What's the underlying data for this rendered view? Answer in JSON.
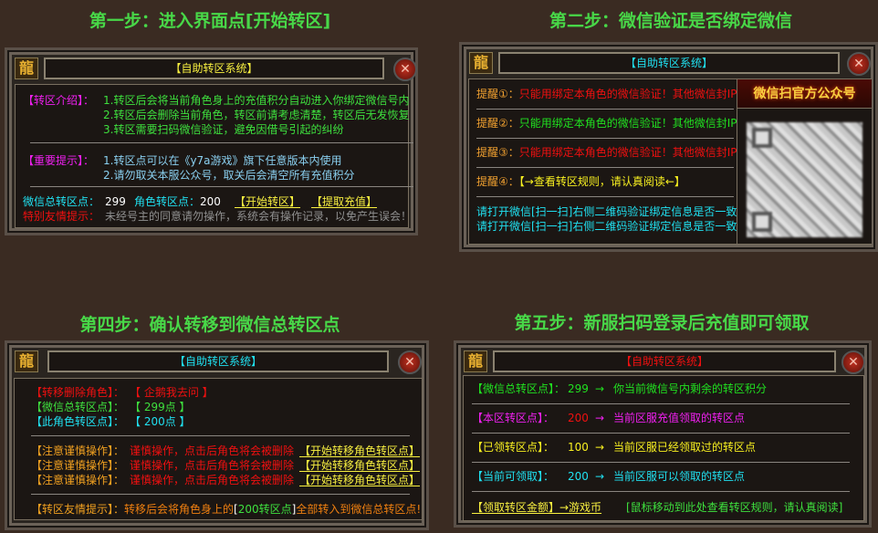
{
  "steps": [
    "第一步：进入界面点[开始转区]",
    "第二步：微信验证是否绑定微信",
    "第四步：确认转移到微信总转区点",
    "第五步：新服扫码登录后充值即可领取"
  ],
  "logo_char": "龍",
  "window_title": "【自助转区系统】",
  "p1": {
    "intro_label": "【转区介绍】：",
    "intro": [
      "1.转区后会将当前角色身上的充值积分自动进入你绑定微信号内",
      "2.转区后会删除当前角色，转区前请考虑清楚，转区后无发恢复",
      "3.转区需要扫码微信验证，避免因借号引起的纠纷"
    ],
    "important_label": "【重要提示】：",
    "important": [
      "1.转区点可以在《y7a游戏》旗下任意版本内使用",
      "2.请勿取关本服公众号，取关后会清空所有充值积分"
    ],
    "wx_label": "微信总转区点：",
    "wx_value": "299",
    "role_label": "角色转区点：",
    "role_value": "200",
    "start_btn": "【开始转区】",
    "recharge_btn": "【提取充值】",
    "warn_label": "特别友情提示：",
    "warn_text": "未经号主的同意请勿操作，系统会有操作记录，以免产生误会！"
  },
  "p2": {
    "reminders": [
      {
        "label": "提醒①：",
        "text": "只能用绑定本角色的微信验证！其他微信封IP",
        "color": "#f01010"
      },
      {
        "label": "提醒②：",
        "text": "只能用绑定本角色的微信验证！其他微信封IP",
        "color": "#20e020"
      },
      {
        "label": "提醒③：",
        "text": "只能用绑定本角色的微信验证！其他微信封IP",
        "color": "#f01010"
      },
      {
        "label": "提醒④：",
        "text": "【→查看转区规则，请认真阅读←】",
        "color": "#f8f020"
      }
    ],
    "scan_lines": [
      "请打开微信[扫一扫]右侧二维码验证绑定信息是否一致",
      "请打开微信[扫一扫]右侧二维码验证绑定信息是否一致"
    ],
    "qr_title": "微信扫官方公众号"
  },
  "p3": {
    "role_label": "【转移删除角色】：",
    "role_value": "【  企鹅我去问  】",
    "wx_label": "【微信总转区点】：",
    "wx_value": "【  299点  】",
    "this_label": "【此角色转区点】：",
    "this_value": "【  200点  】",
    "caution_label": "【注意谨慎操作】：",
    "caution_text": "谨慎操作，点击后角色将会被删除",
    "transfer_btn": "【开始转移角色转区点】",
    "tip_label": "【转区友情提示】：",
    "tip_pre": "转移后会将角色身上的",
    "tip_mid": "200转区点",
    "tip_post": "全部转入到微信总转区点!"
  },
  "p4": {
    "rows": [
      {
        "label": "【微信总转区点】：",
        "value": "299",
        "desc": "你当前微信号内剩余的转区积分"
      },
      {
        "label": "【本区转区点】：",
        "value": "200",
        "desc": "当前区服充值领取的转区点"
      },
      {
        "label": "【已领转区点】：",
        "value": "100",
        "desc": "当前区服已经领取过的转区点"
      },
      {
        "label": "【当前可领取】：",
        "value": "200",
        "desc": "当前区服可以领取的转区点"
      }
    ],
    "arrow": "→",
    "claim_btn": "【领取转区金额】→游戏币",
    "rules_hint": "[鼠标移动到此处查看转区规则，请认真阅读]"
  }
}
